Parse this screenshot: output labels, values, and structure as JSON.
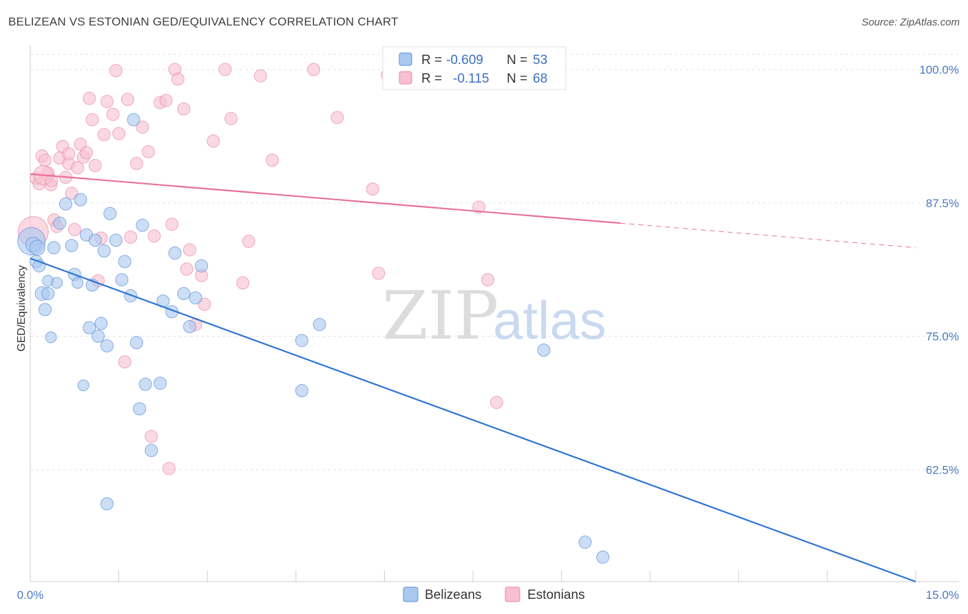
{
  "header": {
    "title": "BELIZEAN VS ESTONIAN GED/EQUIVALENCY CORRELATION CHART",
    "source": "Source: ZipAtlas.com"
  },
  "legend": {
    "rows": [
      {
        "r_label": "R =",
        "r_value": "-0.609",
        "n_label": "N =",
        "n_value": "53"
      },
      {
        "r_label": "R =",
        "r_value": "-0.115",
        "n_label": "N =",
        "n_value": "68"
      }
    ],
    "bottom": [
      "Belizeans",
      "Estonians"
    ]
  },
  "watermark": {
    "zip": "ZIP",
    "atlas": "atlas"
  },
  "colors": {
    "belizean_fill": "#a9c8f0",
    "belizean_stroke": "#5b8fd6",
    "belizean_line": "#2f74d0",
    "estonian_fill": "#f7bfd0",
    "estonian_stroke": "#e889a8",
    "estonian_line": "#e8709a",
    "grid": "#e3e3e3",
    "axis_text": "#4a78c2"
  },
  "chart_data": {
    "type": "scatter",
    "title": "BELIZEAN VS ESTONIAN GED/EQUIVALENCY CORRELATION CHART",
    "xlabel": "",
    "ylabel": "GED/Equivalency",
    "xlim": [
      0,
      15
    ],
    "ylim": [
      52,
      102
    ],
    "x_tick_labels": [
      "0.0%",
      "15.0%"
    ],
    "y_ticks": [
      62.5,
      75.0,
      87.5,
      100.0
    ],
    "y_tick_labels": [
      "62.5%",
      "75.0%",
      "87.5%",
      "100.0%"
    ],
    "grid": true,
    "legend_placement": "top-center",
    "series": [
      {
        "name": "Belizeans",
        "r": -0.609,
        "n": 53,
        "trend": {
          "x0": 0.0,
          "y0": 82.3,
          "x1": 15.0,
          "y1": 52.0
        },
        "points": [
          [
            0.02,
            83.9
          ],
          [
            0.05,
            83.6
          ],
          [
            0.1,
            82.0
          ],
          [
            0.15,
            81.6
          ],
          [
            0.2,
            79.0
          ],
          [
            0.25,
            77.5
          ],
          [
            0.3,
            80.2
          ],
          [
            0.35,
            74.9
          ],
          [
            0.4,
            83.3
          ],
          [
            0.45,
            80.0
          ],
          [
            0.5,
            85.6
          ],
          [
            0.6,
            87.4
          ],
          [
            0.7,
            83.5
          ],
          [
            0.75,
            80.8
          ],
          [
            0.8,
            80.0
          ],
          [
            0.85,
            87.8
          ],
          [
            0.9,
            70.4
          ],
          [
            0.95,
            84.5
          ],
          [
            1.0,
            75.8
          ],
          [
            1.05,
            79.8
          ],
          [
            1.1,
            84.0
          ],
          [
            1.15,
            75.0
          ],
          [
            1.2,
            76.2
          ],
          [
            1.25,
            83.0
          ],
          [
            1.3,
            74.1
          ],
          [
            1.35,
            86.5
          ],
          [
            1.45,
            84.0
          ],
          [
            1.55,
            80.3
          ],
          [
            1.6,
            82.0
          ],
          [
            1.7,
            78.8
          ],
          [
            1.75,
            95.3
          ],
          [
            1.8,
            74.4
          ],
          [
            1.85,
            68.2
          ],
          [
            1.9,
            85.4
          ],
          [
            1.95,
            70.5
          ],
          [
            2.05,
            64.3
          ],
          [
            2.2,
            70.6
          ],
          [
            2.25,
            78.3
          ],
          [
            2.4,
            77.3
          ],
          [
            2.45,
            82.8
          ],
          [
            2.6,
            79.0
          ],
          [
            2.7,
            75.9
          ],
          [
            2.8,
            78.6
          ],
          [
            2.9,
            81.6
          ],
          [
            4.6,
            74.6
          ],
          [
            4.6,
            69.9
          ],
          [
            4.9,
            76.1
          ],
          [
            1.3,
            59.3
          ],
          [
            8.7,
            73.7
          ],
          [
            9.4,
            55.7
          ],
          [
            9.7,
            54.3
          ],
          [
            0.3,
            79.0
          ],
          [
            0.12,
            83.3
          ]
        ],
        "point_sizes": [
          20,
          11,
          9,
          9,
          10,
          9,
          8,
          8,
          9,
          8,
          9,
          9,
          9,
          9,
          8,
          9,
          8,
          9,
          9,
          9,
          9,
          9,
          9,
          9,
          9,
          9,
          9,
          9,
          9,
          9,
          9,
          9,
          9,
          9,
          9,
          9,
          9,
          9,
          9,
          9,
          9,
          9,
          9,
          9,
          9,
          9,
          9,
          9,
          9,
          9,
          9,
          9,
          11
        ]
      },
      {
        "name": "Estonians",
        "r": -0.115,
        "n": 68,
        "trend": {
          "x0": 0.0,
          "y0": 90.2,
          "x1": 10.0,
          "y1": 85.6
        },
        "trend_dashed_to": {
          "x": 15.0,
          "y": 83.3
        },
        "points": [
          [
            0.05,
            84.8
          ],
          [
            0.1,
            89.8
          ],
          [
            0.15,
            89.3
          ],
          [
            0.2,
            91.9
          ],
          [
            0.25,
            91.5
          ],
          [
            0.3,
            90.3
          ],
          [
            0.35,
            89.2
          ],
          [
            0.4,
            85.9
          ],
          [
            0.45,
            85.3
          ],
          [
            0.5,
            91.7
          ],
          [
            0.55,
            92.8
          ],
          [
            0.6,
            89.9
          ],
          [
            0.65,
            91.2
          ],
          [
            0.7,
            88.4
          ],
          [
            0.75,
            85.0
          ],
          [
            0.8,
            90.8
          ],
          [
            0.85,
            93.0
          ],
          [
            0.9,
            91.8
          ],
          [
            0.95,
            92.2
          ],
          [
            1.0,
            97.3
          ],
          [
            1.1,
            91.0
          ],
          [
            1.15,
            80.2
          ],
          [
            1.2,
            84.2
          ],
          [
            1.25,
            93.9
          ],
          [
            1.3,
            97.0
          ],
          [
            1.4,
            95.8
          ],
          [
            1.45,
            99.9
          ],
          [
            1.5,
            94.0
          ],
          [
            1.6,
            72.6
          ],
          [
            1.65,
            97.2
          ],
          [
            1.7,
            84.3
          ],
          [
            1.8,
            91.2
          ],
          [
            1.9,
            94.6
          ],
          [
            2.0,
            92.3
          ],
          [
            2.05,
            65.6
          ],
          [
            2.1,
            84.4
          ],
          [
            2.2,
            96.9
          ],
          [
            2.3,
            97.1
          ],
          [
            2.35,
            62.6
          ],
          [
            2.4,
            85.5
          ],
          [
            2.45,
            100.0
          ],
          [
            2.5,
            99.1
          ],
          [
            2.6,
            96.3
          ],
          [
            2.65,
            81.3
          ],
          [
            2.7,
            83.1
          ],
          [
            2.8,
            76.1
          ],
          [
            2.9,
            80.7
          ],
          [
            2.95,
            78.0
          ],
          [
            3.1,
            93.3
          ],
          [
            3.3,
            100.0
          ],
          [
            3.4,
            95.4
          ],
          [
            3.6,
            80.0
          ],
          [
            3.7,
            83.9
          ],
          [
            3.9,
            99.4
          ],
          [
            4.1,
            91.5
          ],
          [
            4.8,
            100.0
          ],
          [
            5.2,
            95.5
          ],
          [
            5.8,
            88.8
          ],
          [
            5.9,
            80.9
          ],
          [
            6.3,
            99.9
          ],
          [
            7.6,
            87.1
          ],
          [
            7.75,
            80.3
          ],
          [
            7.9,
            68.8
          ],
          [
            0.22,
            90.1
          ],
          [
            0.36,
            89.6
          ],
          [
            0.65,
            92.1
          ],
          [
            1.05,
            95.3
          ],
          [
            6.05,
            99.5
          ]
        ],
        "point_sizes": [
          22,
          9,
          9,
          9,
          9,
          9,
          9,
          9,
          9,
          9,
          9,
          9,
          9,
          9,
          9,
          9,
          9,
          9,
          9,
          9,
          9,
          9,
          9,
          9,
          9,
          9,
          9,
          9,
          9,
          9,
          9,
          9,
          9,
          9,
          9,
          9,
          9,
          9,
          9,
          9,
          9,
          9,
          9,
          9,
          9,
          9,
          9,
          9,
          9,
          9,
          9,
          9,
          9,
          9,
          9,
          9,
          9,
          9,
          9,
          9,
          9,
          9,
          9,
          14,
          9,
          9,
          9,
          9
        ]
      }
    ]
  }
}
